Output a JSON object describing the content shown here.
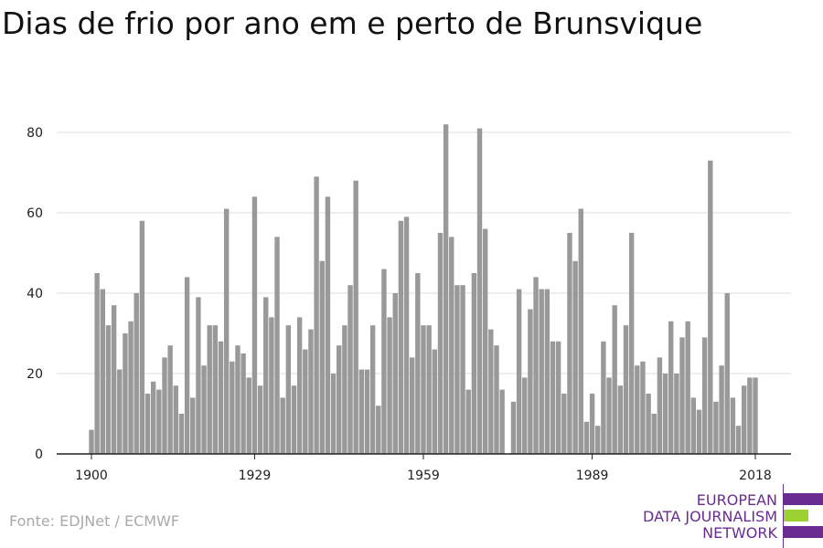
{
  "chart_data": {
    "type": "bar",
    "title": "Dias de frio por ano em e perto de Brunsvique",
    "xlabel": "",
    "ylabel": "",
    "x_ticks": [
      "1900",
      "1929",
      "1959",
      "1989",
      "2018"
    ],
    "y_ticks": [
      0,
      20,
      40,
      60,
      80
    ],
    "ylim": [
      0,
      90
    ],
    "xlim": [
      1900,
      2018
    ],
    "grid": "horizontal",
    "x": [
      1900,
      1901,
      1902,
      1903,
      1904,
      1905,
      1906,
      1907,
      1908,
      1909,
      1910,
      1911,
      1912,
      1913,
      1914,
      1915,
      1916,
      1917,
      1918,
      1919,
      1920,
      1921,
      1922,
      1923,
      1924,
      1925,
      1926,
      1927,
      1928,
      1929,
      1930,
      1931,
      1932,
      1933,
      1934,
      1935,
      1936,
      1937,
      1938,
      1939,
      1940,
      1941,
      1942,
      1943,
      1944,
      1945,
      1946,
      1947,
      1948,
      1949,
      1950,
      1951,
      1952,
      1953,
      1954,
      1955,
      1956,
      1957,
      1958,
      1959,
      1960,
      1961,
      1962,
      1963,
      1964,
      1965,
      1966,
      1967,
      1968,
      1969,
      1970,
      1971,
      1972,
      1973,
      1974,
      1975,
      1976,
      1977,
      1978,
      1979,
      1980,
      1981,
      1982,
      1983,
      1984,
      1985,
      1986,
      1987,
      1988,
      1989,
      1990,
      1991,
      1992,
      1993,
      1994,
      1995,
      1996,
      1997,
      1998,
      1999,
      2000,
      2001,
      2002,
      2003,
      2004,
      2005,
      2006,
      2007,
      2008,
      2009,
      2010,
      2011,
      2012,
      2013,
      2014,
      2015,
      2016,
      2017,
      2018
    ],
    "values": [
      6,
      45,
      41,
      32,
      37,
      21,
      30,
      33,
      40,
      58,
      15,
      18,
      16,
      24,
      27,
      17,
      10,
      44,
      14,
      39,
      22,
      32,
      32,
      28,
      61,
      23,
      27,
      25,
      19,
      64,
      17,
      39,
      34,
      54,
      14,
      32,
      17,
      34,
      26,
      31,
      69,
      48,
      64,
      20,
      27,
      32,
      42,
      68,
      21,
      21,
      32,
      12,
      46,
      34,
      40,
      58,
      59,
      24,
      45,
      32,
      32,
      26,
      55,
      82,
      54,
      42,
      42,
      16,
      45,
      81,
      56,
      31,
      27,
      16,
      0,
      13,
      41,
      19,
      36,
      44,
      41,
      41,
      28,
      28,
      15,
      55,
      48,
      61,
      8,
      15,
      7,
      28,
      19,
      37,
      17,
      32,
      55,
      22,
      23,
      15,
      10,
      24,
      20,
      33,
      20,
      29,
      33,
      14,
      11,
      29,
      73,
      13,
      22,
      40,
      14,
      7,
      17,
      19,
      19
    ]
  },
  "source_text": "Fonte: EDJNet / ECMWF",
  "logo": {
    "lines": [
      "EUROPEAN",
      "DATA JOURNALISM",
      "NETWORK"
    ],
    "colors": {
      "purple": "#6b2c91",
      "green": "#9bd130"
    }
  },
  "colors": {
    "bar": "#999999",
    "grid": "#dddddd",
    "axis": "#222222"
  }
}
